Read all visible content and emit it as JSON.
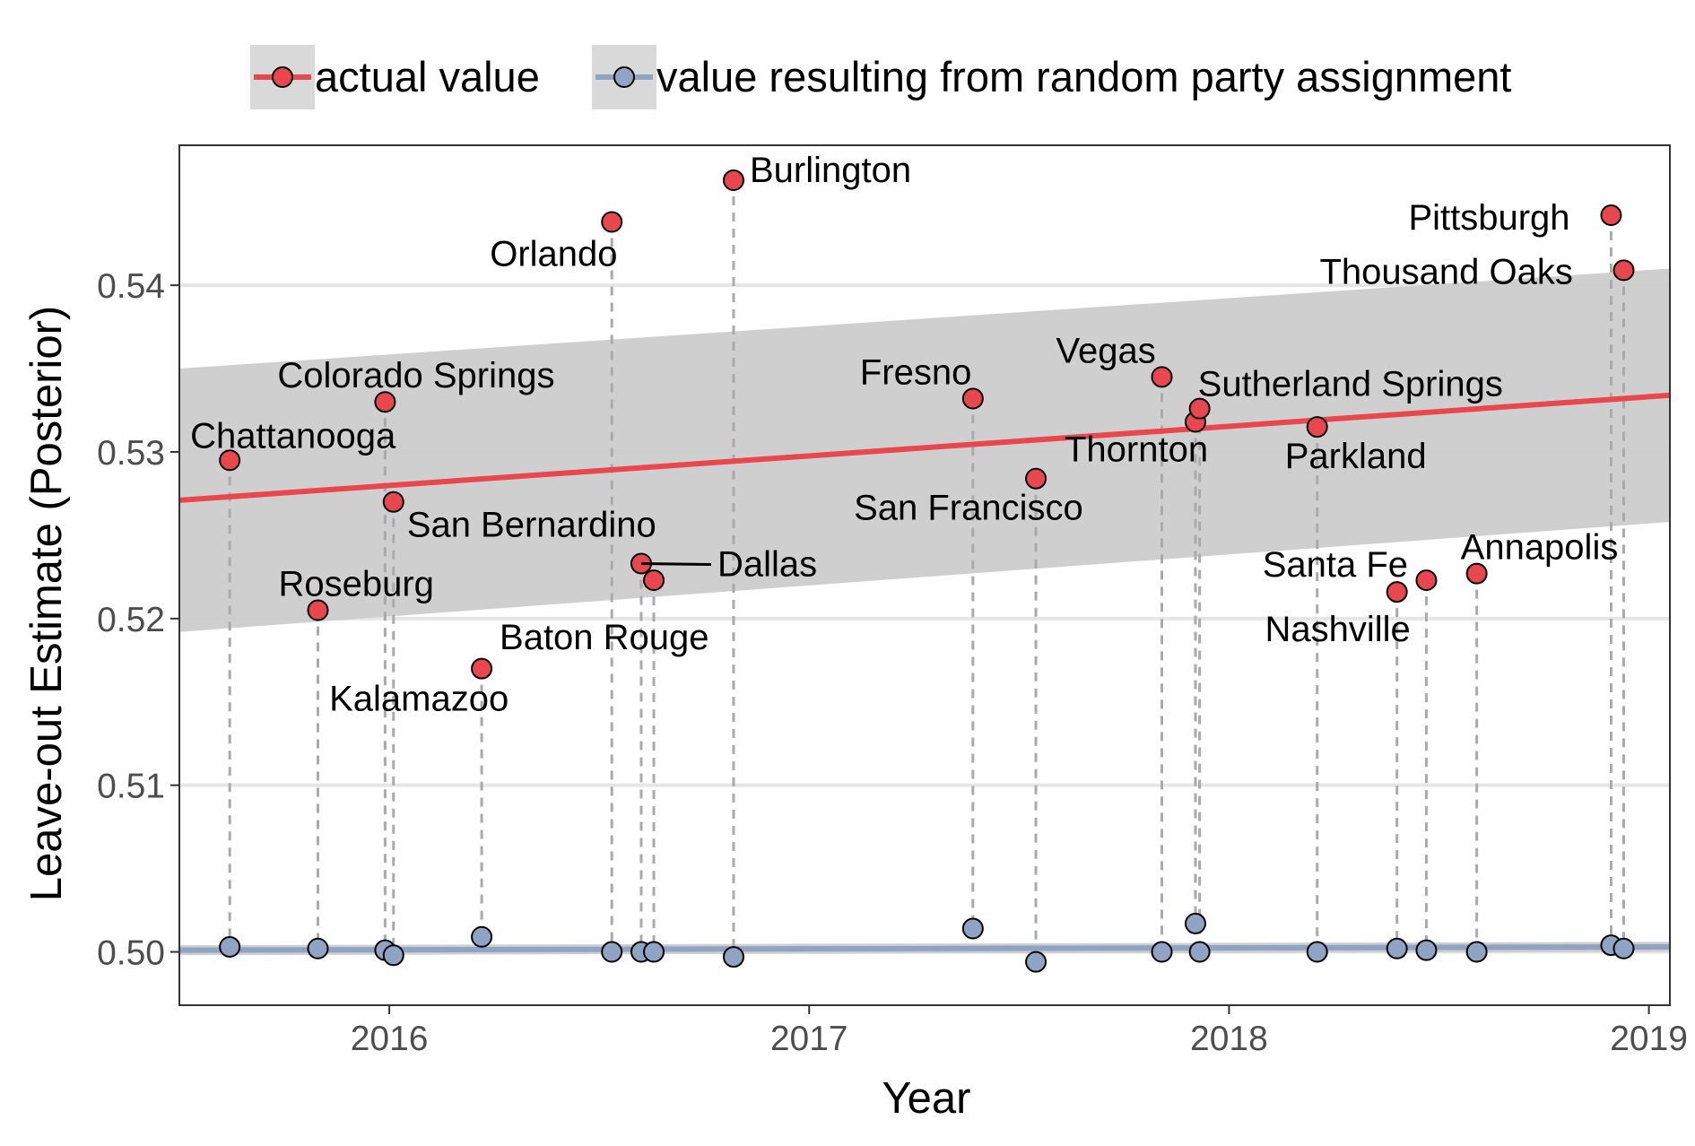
{
  "legend": {
    "actual_label": "actual value",
    "random_label": "value resulting from random party assignment",
    "placement": "top"
  },
  "colors": {
    "actual": "#E8474E",
    "random": "#8FA3C4",
    "random_point": "#8FA3C4",
    "ribbon": "#CCCCCC",
    "gridline": "#E6E6E6",
    "dashed_line": "#AAAAAA",
    "text": "#000000",
    "legend_key_bg": "#D9D9D9"
  },
  "chart_data": {
    "type": "scatter",
    "xlabel": "Year",
    "ylabel": "Leave-out Estimate (Posterior)",
    "xlim": [
      2015.5,
      2019.05
    ],
    "ylim": [
      0.4968,
      0.5484
    ],
    "x_ticks": [
      2016,
      2017,
      2018,
      2019
    ],
    "x_tick_labels": [
      "2016",
      "2017",
      "2018",
      "2019"
    ],
    "y_ticks": [
      0.5,
      0.51,
      0.52,
      0.53,
      0.54
    ],
    "y_tick_labels": [
      "0.50",
      "0.51",
      "0.52",
      "0.53",
      "0.54"
    ],
    "grid": true,
    "points": [
      {
        "label": "Chattanooga",
        "x": 2015.62,
        "actual": 0.5295,
        "random": 0.5003
      },
      {
        "label": "Roseburg",
        "x": 2015.83,
        "actual": 0.5205,
        "random": 0.5002
      },
      {
        "label": "Colorado Springs",
        "x": 2015.99,
        "actual": 0.533,
        "random": 0.5001
      },
      {
        "label": "San Bernardino",
        "x": 2016.01,
        "actual": 0.527,
        "random": 0.4998
      },
      {
        "label": "Kalamazoo",
        "x": 2016.22,
        "actual": 0.517,
        "random": 0.5009
      },
      {
        "label": "Orlando",
        "x": 2016.53,
        "actual": 0.5438,
        "random": 0.5
      },
      {
        "label": "Dallas",
        "x": 2016.6,
        "actual": 0.5233,
        "random": 0.5
      },
      {
        "label": "Baton Rouge",
        "x": 2016.63,
        "actual": 0.5223,
        "random": 0.5
      },
      {
        "label": "Burlington",
        "x": 2016.82,
        "actual": 0.5463,
        "random": 0.4997
      },
      {
        "label": "Fresno",
        "x": 2017.39,
        "actual": 0.5332,
        "random": 0.5014
      },
      {
        "label": "San Francisco",
        "x": 2017.54,
        "actual": 0.5284,
        "random": 0.4994
      },
      {
        "label": "Vegas",
        "x": 2017.84,
        "actual": 0.5345,
        "random": 0.5
      },
      {
        "label": "Thornton",
        "x": 2017.92,
        "actual": 0.5318,
        "random": 0.5017
      },
      {
        "label": "Sutherland Springs",
        "x": 2017.93,
        "actual": 0.5326,
        "random": 0.5
      },
      {
        "label": "Parkland",
        "x": 2018.21,
        "actual": 0.5315,
        "random": 0.5
      },
      {
        "label": "Santa Fe",
        "x": 2018.4,
        "actual": 0.5216,
        "random": 0.5002
      },
      {
        "label": "Nashville",
        "x": 2018.47,
        "actual": 0.5223,
        "random": 0.5001
      },
      {
        "label": "Annapolis",
        "x": 2018.59,
        "actual": 0.5227,
        "random": 0.5
      },
      {
        "label": "Pittsburgh",
        "x": 2018.91,
        "actual": 0.5442,
        "random": 0.5004
      },
      {
        "label": "Thousand Oaks",
        "x": 2018.94,
        "actual": 0.5409,
        "random": 0.5002
      }
    ],
    "actual_trend": {
      "x": [
        2015.5,
        2019.05
      ],
      "fit": [
        0.5271,
        0.5334
      ],
      "lower": [
        0.5192,
        0.5258
      ],
      "upper": [
        0.535,
        0.541
      ]
    },
    "random_trend": {
      "x": [
        2015.5,
        2019.05
      ],
      "fit": [
        0.5001,
        0.5003
      ],
      "lower": [
        0.4998,
        0.5
      ],
      "upper": [
        0.5004,
        0.5006
      ]
    }
  }
}
